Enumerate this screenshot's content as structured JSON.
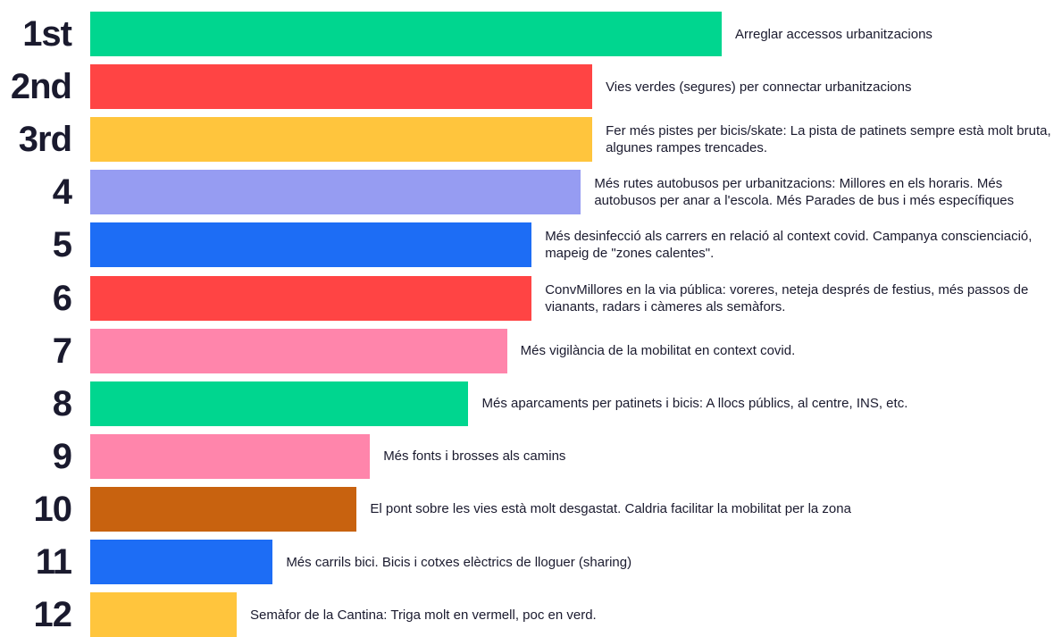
{
  "chart_data": {
    "type": "bar",
    "orientation": "horizontal",
    "title": "",
    "xlabel": "",
    "ylabel": "",
    "xlim": [
      0,
      100
    ],
    "grid": false,
    "legend": "none",
    "items": [
      {
        "rank": "1st",
        "label": "Arreglar accessos urbanitzacions",
        "value": 100,
        "color": "#00d68f"
      },
      {
        "rank": "2nd",
        "label": "Vies verdes (segures) per connectar urbanitzacions",
        "value": 79.5,
        "color": "#ff4444"
      },
      {
        "rank": "3rd",
        "label": "Fer més pistes per bicis/skate: La pista de patinets sempre està molt bruta, algunes rampes trencades.",
        "value": 79.5,
        "color": "#ffc53d"
      },
      {
        "rank": "4",
        "label": "Més rutes autobusos per urbanitzacions: Millores en els horaris. Més autobusos per anar a l'escola. Més Parades de bus i més específiques",
        "value": 77.7,
        "color": "#969cf2"
      },
      {
        "rank": "5",
        "label": "Més desinfecció als carrers en relació al context covid. Campanya conscienciació, mapeig de \"zones calentes\".",
        "value": 69.9,
        "color": "#1d6df5"
      },
      {
        "rank": "6",
        "label": "ConvMillores en la via pública: voreres, neteja després de festius, més passos de vianants, radars i càmeres als semàfors.",
        "value": 69.9,
        "color": "#ff4444"
      },
      {
        "rank": "7",
        "label": "Més vigilància de la mobilitat en context covid.",
        "value": 66.0,
        "color": "#ff85ab"
      },
      {
        "rank": "8",
        "label": "Més aparcaments per patinets i bicis: A llocs públics, al centre, INS, etc.",
        "value": 59.9,
        "color": "#00d68f"
      },
      {
        "rank": "9",
        "label": "Més fonts i brosses als camins",
        "value": 44.3,
        "color": "#ff85ab"
      },
      {
        "rank": "10",
        "label": "El pont sobre les vies està molt desgastat. Caldria facilitar la mobilitat per la zona",
        "value": 42.2,
        "color": "#c8620f"
      },
      {
        "rank": "11",
        "label": "Més carrils bici. Bicis i cotxes elèctrics de lloguer (sharing)",
        "value": 28.9,
        "color": "#1d6df5"
      },
      {
        "rank": "12",
        "label": "Semàfor de la Cantina: Triga molt en vermell, poc en verd.",
        "value": 23.2,
        "color": "#ffc53d"
      }
    ]
  }
}
